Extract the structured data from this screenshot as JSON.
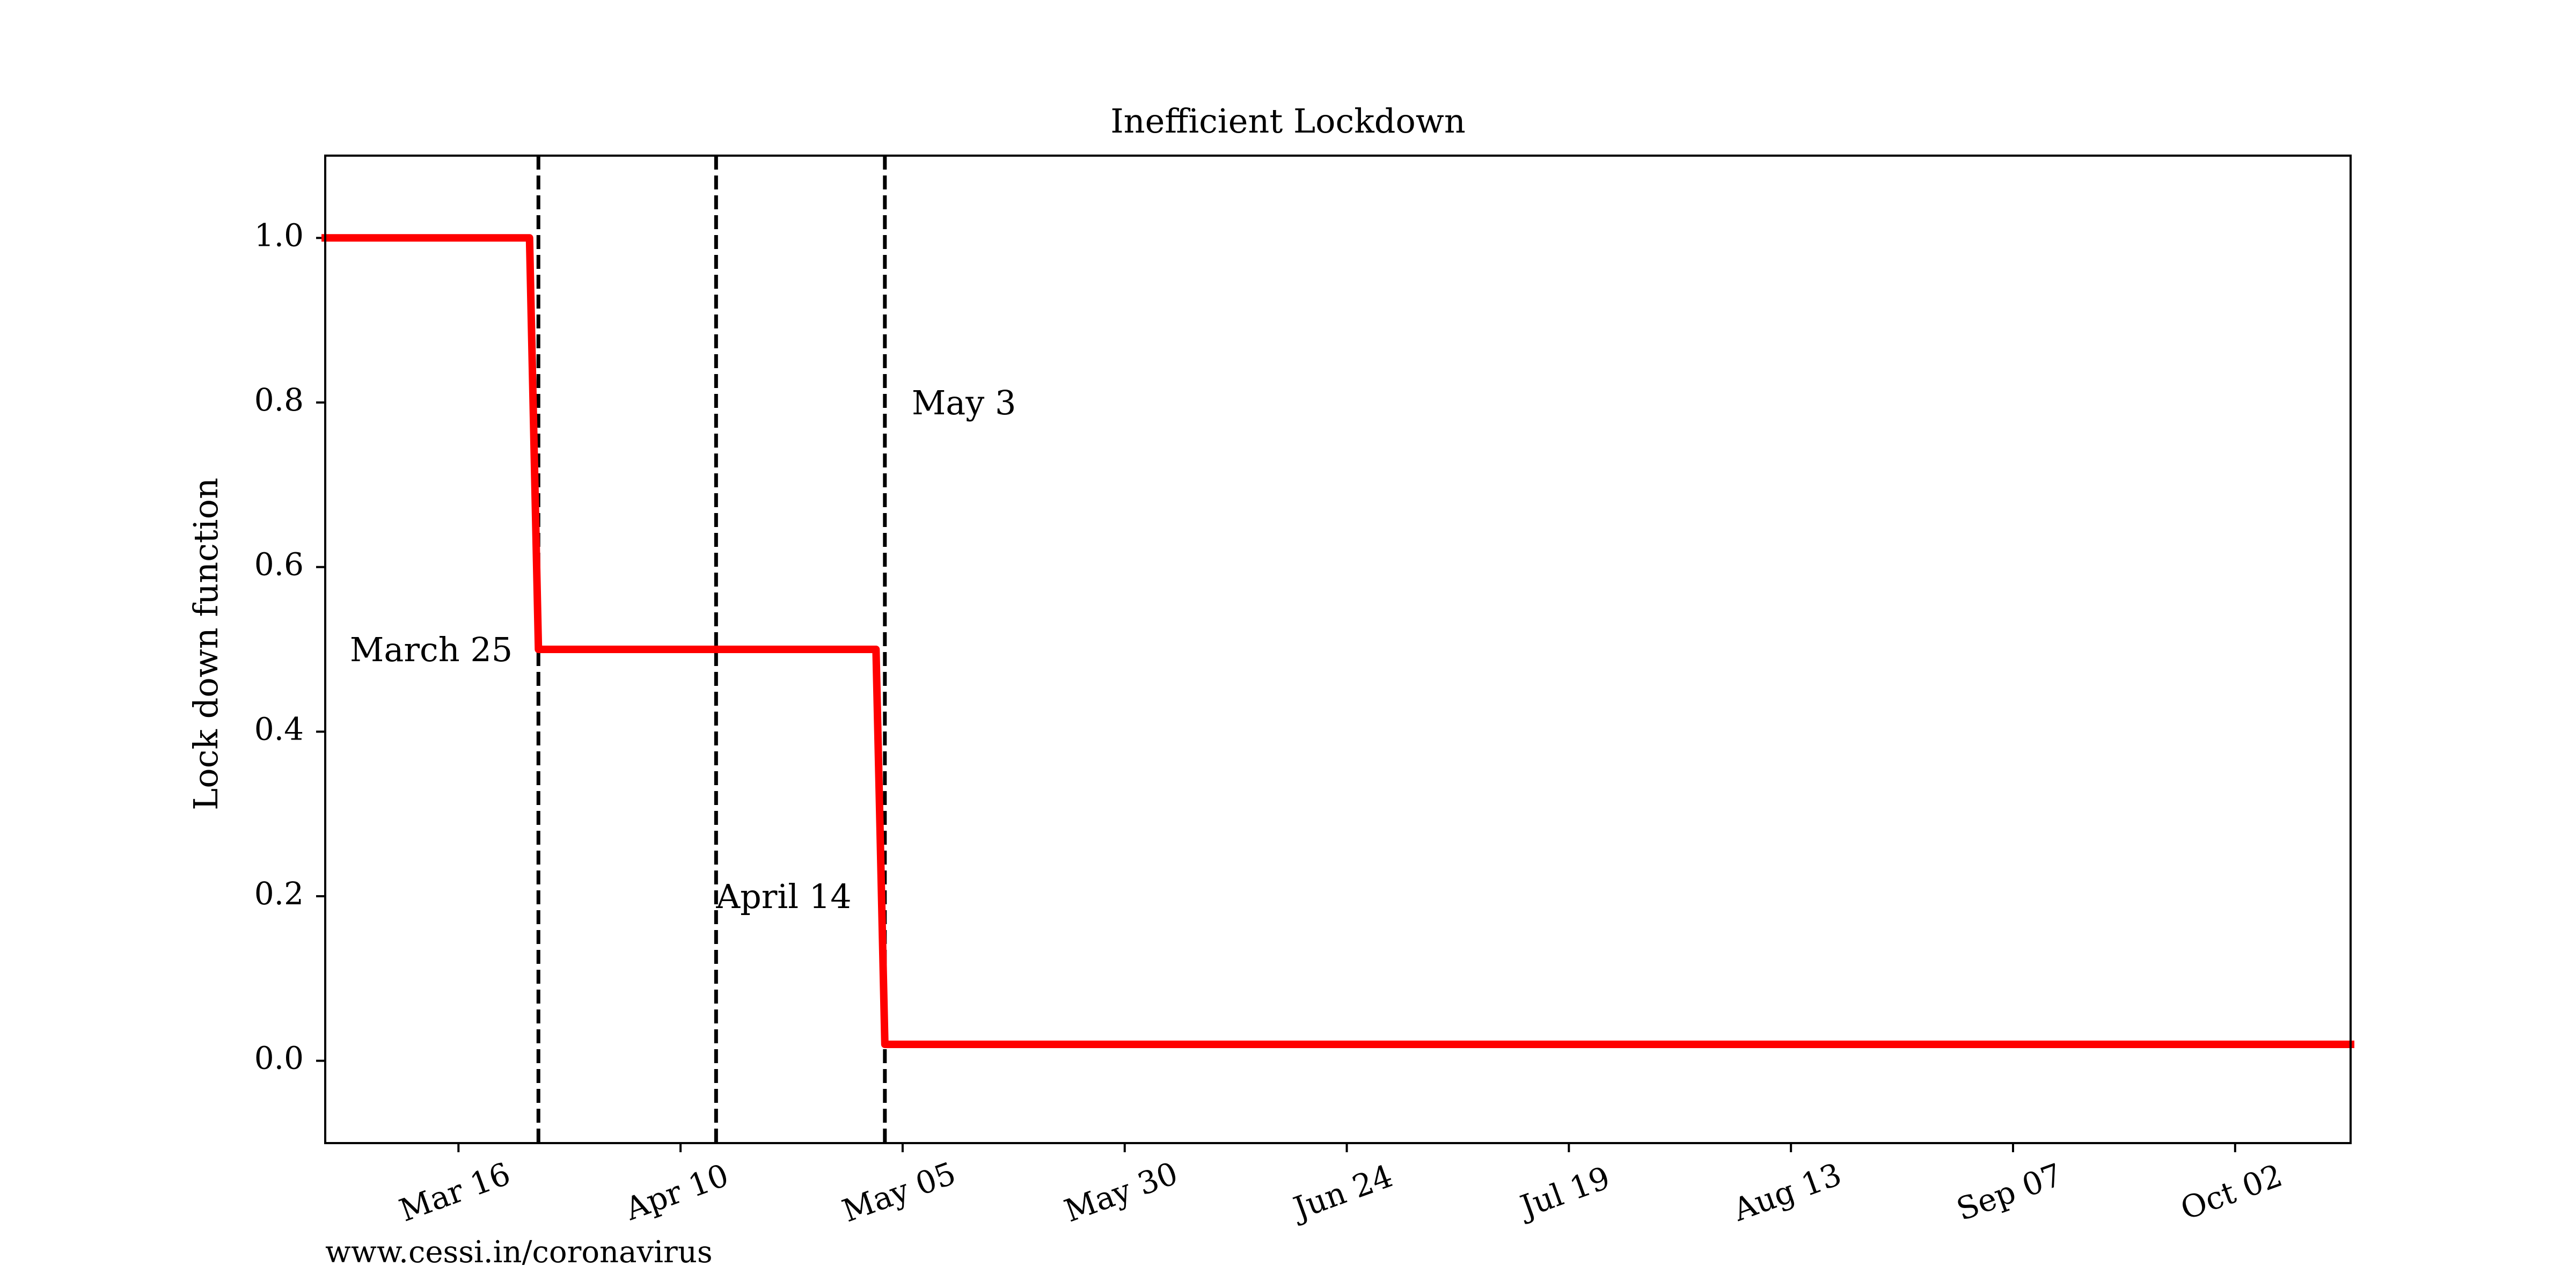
{
  "chart_data": {
    "type": "line",
    "title": "Inefficient Lockdown",
    "xlabel": "",
    "ylabel": "Lock down function",
    "x_axis_type": "date",
    "xlim": [
      "2020-03-01",
      "2020-10-15"
    ],
    "ylim": [
      -0.1,
      1.1
    ],
    "x_ticks": [
      {
        "date": "2020-03-16",
        "label": "Mar 16"
      },
      {
        "date": "2020-04-10",
        "label": "Apr 10"
      },
      {
        "date": "2020-05-05",
        "label": "May 05"
      },
      {
        "date": "2020-05-30",
        "label": "May 30"
      },
      {
        "date": "2020-06-24",
        "label": "Jun 24"
      },
      {
        "date": "2020-07-19",
        "label": "Jul 19"
      },
      {
        "date": "2020-08-13",
        "label": "Aug 13"
      },
      {
        "date": "2020-09-07",
        "label": "Sep 07"
      },
      {
        "date": "2020-10-02",
        "label": "Oct 02"
      }
    ],
    "y_ticks": [
      {
        "value": 0.0,
        "label": "0.0"
      },
      {
        "value": 0.2,
        "label": "0.2"
      },
      {
        "value": 0.4,
        "label": "0.4"
      },
      {
        "value": 0.6,
        "label": "0.6"
      },
      {
        "value": 0.8,
        "label": "0.8"
      },
      {
        "value": 1.0,
        "label": "1.0"
      }
    ],
    "series": [
      {
        "color": "#ff0000",
        "points": [
          {
            "x": "2020-03-01",
            "y": 1.0
          },
          {
            "x": "2020-03-24",
            "y": 1.0
          },
          {
            "x": "2020-03-25",
            "y": 0.5
          },
          {
            "x": "2020-05-02",
            "y": 0.5
          },
          {
            "x": "2020-05-03",
            "y": 0.02
          },
          {
            "x": "2020-10-15",
            "y": 0.02
          }
        ]
      }
    ],
    "vlines": [
      {
        "date": "2020-03-25",
        "label": "March 25",
        "label_y": 0.5,
        "label_side": "left"
      },
      {
        "date": "2020-04-14",
        "label": "April 14",
        "label_y": 0.2,
        "label_side": "right"
      },
      {
        "date": "2020-05-03",
        "label": "May 3",
        "label_y": 0.8,
        "label_side": "right"
      }
    ],
    "grid": false,
    "legend": "none"
  },
  "footer": {
    "source": "www.cessi.in/coronavirus"
  }
}
